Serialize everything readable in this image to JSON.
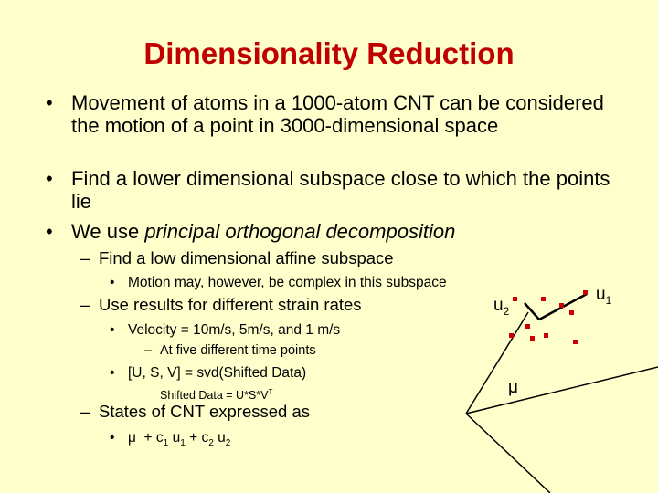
{
  "slide": {
    "title": "Dimensionality Reduction",
    "items": [
      {
        "level": 1,
        "parts": [
          {
            "text": "Movement of atoms in a 1000-atom CNT can be considered the motion of a point in 3000-dimensional space"
          }
        ]
      },
      {
        "level": 1,
        "parts": [
          {
            "text": "Find a lower dimensional subspace close to which the points lie"
          }
        ]
      },
      {
        "level": 1,
        "parts": [
          {
            "text": "We use "
          },
          {
            "text": "principal orthogonal decomposition",
            "style": "italic"
          }
        ]
      },
      {
        "level": 2,
        "parts": [
          {
            "text": "Find a low dimensional affine subspace"
          }
        ]
      },
      {
        "level": 3,
        "parts": [
          {
            "text": "Motion may, however, be complex in this subspace"
          }
        ]
      },
      {
        "level": 2,
        "parts": [
          {
            "text": "Use results for different strain rates"
          }
        ]
      },
      {
        "level": 3,
        "parts": [
          {
            "text": "Velocity = 10m/s, 5m/s, and 1 m/s"
          }
        ]
      },
      {
        "level": 4,
        "parts": [
          {
            "text": "At five different time points"
          }
        ]
      },
      {
        "level": 3,
        "parts": [
          {
            "text": "[U, S, V] = svd(Shifted Data)"
          }
        ]
      },
      {
        "level": 4,
        "parts": [
          {
            "text": "Shifted Data = U*S*V"
          },
          {
            "text": "T",
            "style": "sup"
          }
        ]
      },
      {
        "level": 2,
        "parts": [
          {
            "text": "States of CNT expressed as"
          }
        ]
      },
      {
        "level": 3,
        "parts": [
          {
            "text": "μ  + c"
          },
          {
            "text": "1",
            "style": "sub"
          },
          {
            "text": " u"
          },
          {
            "text": "1",
            "style": "sub"
          },
          {
            "text": " + c"
          },
          {
            "text": "2",
            "style": "sub"
          },
          {
            "text": " u"
          },
          {
            "text": "2",
            "style": "sub"
          }
        ]
      }
    ],
    "diagram": {
      "u1": {
        "text": "u"
      },
      "u1_index": "1",
      "u2": {
        "text": "u"
      },
      "u2_index": "2",
      "mean": "μ"
    }
  }
}
